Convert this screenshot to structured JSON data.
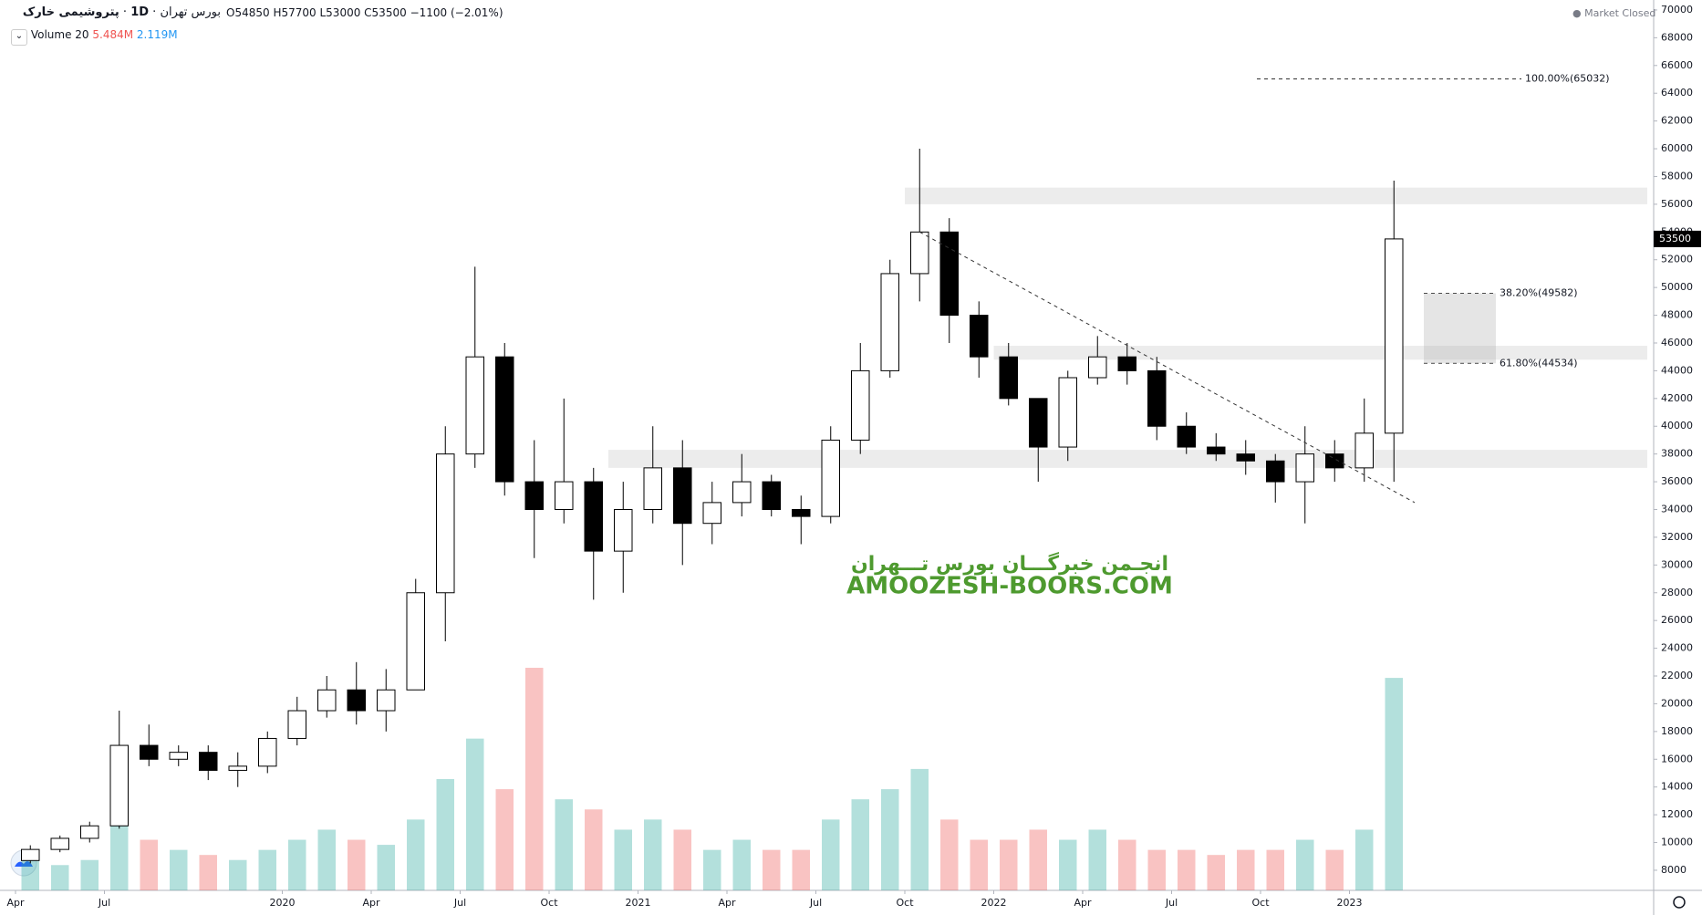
{
  "chart_data": {
    "type": "candlestick",
    "header": {
      "symbol": "پتروشیمی خارک",
      "interval": "1D",
      "exchange": "بورس تهران",
      "open": "O54850",
      "high": "H57700",
      "low": "L53000",
      "close": "C53500",
      "change": "−1100 (−2.01%)",
      "status": "Market Closed"
    },
    "volume_legend": {
      "name": "Volume 20",
      "value": "5.484M",
      "average": "2.119M"
    },
    "watermark": [
      "انجـمن خبرگـــان بورس تـــهران",
      "AMOOZESH-BOORS.COM"
    ],
    "x": [
      "2019-04",
      "2019-05",
      "2019-06",
      "2019-07",
      "2019-08",
      "2019-09",
      "2019-10",
      "2019-11",
      "2019-12",
      "2020-01",
      "2020-02",
      "2020-03",
      "2020-04",
      "2020-05",
      "2020-06",
      "2020-07",
      "2020-08",
      "2020-09",
      "2020-10",
      "2020-11",
      "2020-12",
      "2021-01",
      "2021-02",
      "2021-03",
      "2021-04",
      "2021-05",
      "2021-06",
      "2021-07",
      "2021-08",
      "2021-09",
      "2021-10",
      "2021-11",
      "2021-12",
      "2022-01",
      "2022-02",
      "2022-03",
      "2022-04",
      "2022-05",
      "2022-06",
      "2022-07",
      "2022-08",
      "2022-09",
      "2022-10",
      "2022-11",
      "2022-12",
      "2023-01",
      "2023-02"
    ],
    "open": [
      8700,
      9500,
      10300,
      11200,
      17000,
      16000,
      16500,
      15200,
      15500,
      17500,
      19500,
      21000,
      19500,
      21000,
      28000,
      38000,
      45000,
      36000,
      34000,
      36000,
      31000,
      34000,
      37000,
      33000,
      34500,
      36000,
      34000,
      33500,
      39000,
      44000,
      51000,
      54000,
      48000,
      45000,
      42000,
      38500,
      43500,
      45000,
      44000,
      40000,
      38500,
      38000,
      37500,
      36000,
      38000,
      37000,
      39500
    ],
    "high": [
      9800,
      10500,
      11500,
      19500,
      18500,
      17000,
      17000,
      16500,
      18000,
      20500,
      22000,
      23000,
      22500,
      29000,
      40000,
      51500,
      46000,
      39000,
      42000,
      37000,
      36000,
      40000,
      39000,
      36000,
      38000,
      36500,
      35000,
      40000,
      46000,
      52000,
      60000,
      55000,
      49000,
      46000,
      42000,
      44000,
      46500,
      46000,
      45000,
      41000,
      39500,
      39000,
      38000,
      40000,
      39000,
      42000,
      57700
    ],
    "low": [
      8500,
      9300,
      10000,
      11000,
      15500,
      15500,
      14500,
      14000,
      15000,
      17000,
      19000,
      18500,
      18000,
      21000,
      24500,
      37000,
      35000,
      30500,
      33000,
      27500,
      28000,
      33000,
      30000,
      31500,
      33500,
      33500,
      31500,
      33000,
      38000,
      43500,
      49000,
      46000,
      43500,
      41500,
      36000,
      37500,
      43000,
      43000,
      39000,
      38000,
      37500,
      36500,
      34500,
      33000,
      36000,
      36000,
      36000
    ],
    "close": [
      9500,
      10300,
      11200,
      17000,
      16000,
      16500,
      15200,
      15500,
      17500,
      19500,
      21000,
      19500,
      21000,
      28000,
      38000,
      45000,
      36000,
      34000,
      36000,
      31000,
      34000,
      37000,
      33000,
      34500,
      36000,
      34000,
      33500,
      39000,
      44000,
      51000,
      54000,
      48000,
      45000,
      42000,
      38500,
      43500,
      45000,
      44000,
      40000,
      38500,
      38000,
      37500,
      36000,
      38000,
      37000,
      39500,
      53500
    ],
    "volume": [
      3,
      2.5,
      3,
      9,
      5,
      4,
      3.5,
      3,
      4,
      5,
      6,
      5,
      4.5,
      7,
      11,
      15,
      10,
      22,
      9,
      8,
      6,
      7,
      6,
      4,
      5,
      4,
      4,
      7,
      9,
      10,
      12,
      7,
      5,
      5,
      6,
      5,
      6,
      5,
      4,
      4,
      3.5,
      4,
      4,
      5,
      4,
      6,
      21
    ],
    "ylim": [
      6550,
      70720
    ],
    "volume_ylim": [
      0,
      88
    ],
    "yticks": [
      8000,
      10000,
      12000,
      14000,
      16000,
      18000,
      20000,
      22000,
      24000,
      26000,
      28000,
      30000,
      32000,
      34000,
      36000,
      38000,
      40000,
      42000,
      44000,
      46000,
      48000,
      50000,
      52000,
      54000,
      56000,
      58000,
      60000,
      62000,
      64000,
      66000,
      68000,
      70000
    ],
    "xticks": [
      {
        "value": "2019-04",
        "label": "Apr"
      },
      {
        "value": "2019-07",
        "label": "Jul"
      },
      {
        "value": "2020-01",
        "label": "2020"
      },
      {
        "value": "2020-04",
        "label": "Apr"
      },
      {
        "value": "2020-07",
        "label": "Jul"
      },
      {
        "value": "2020-10",
        "label": "Oct"
      },
      {
        "value": "2021-01",
        "label": "2021"
      },
      {
        "value": "2021-04",
        "label": "Apr"
      },
      {
        "value": "2021-07",
        "label": "Jul"
      },
      {
        "value": "2021-10",
        "label": "Oct"
      },
      {
        "value": "2022-01",
        "label": "2022"
      },
      {
        "value": "2022-04",
        "label": "Apr"
      },
      {
        "value": "2022-07",
        "label": "Jul"
      },
      {
        "value": "2022-10",
        "label": "Oct"
      },
      {
        "value": "2023-01",
        "label": "2023"
      }
    ],
    "fib_levels": [
      {
        "value": 65032,
        "label": "100.00%(65032)"
      },
      {
        "value": 49582,
        "label": "38.20%(49582)"
      },
      {
        "value": 44534,
        "label": "61.80%(44534)"
      }
    ],
    "zones": [
      {
        "from": 56000,
        "to": 57200,
        "start": "2021-10"
      },
      {
        "from": 44800,
        "to": 45800,
        "start": "2022-01"
      },
      {
        "from": 37000,
        "to": 38300,
        "start": "2020-12"
      }
    ],
    "trendline": {
      "x": [
        "2021-10",
        "2023-02"
      ],
      "y": [
        54000,
        34500
      ]
    },
    "up_color": "#ffffff",
    "down_color": "#000000",
    "volume_up_color": "rgba(38,166,154,0.35)",
    "volume_down_color": "rgba(239,83,80,0.35)"
  }
}
